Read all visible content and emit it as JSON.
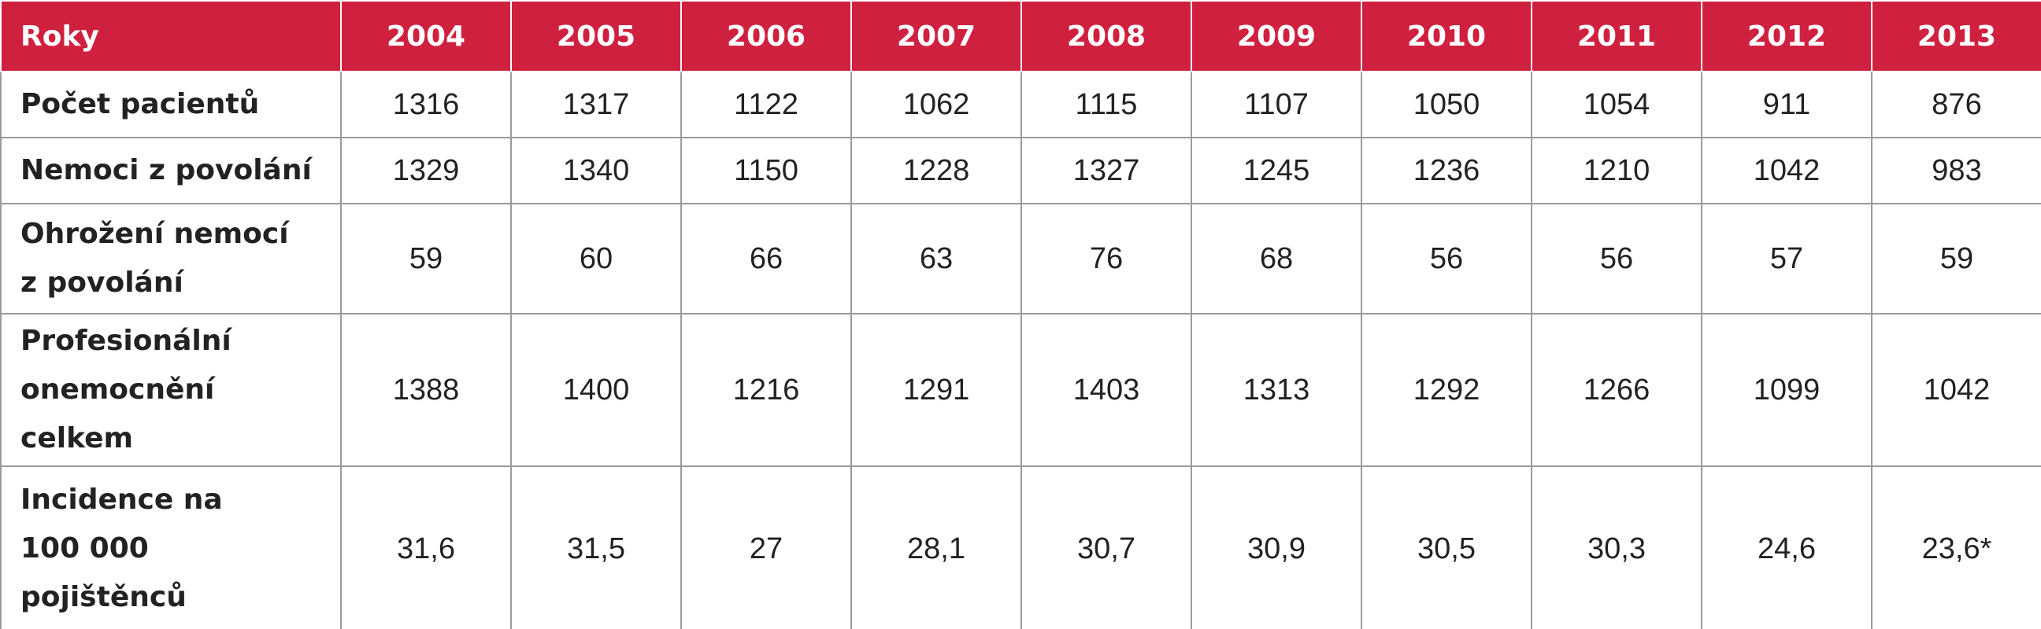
{
  "table": {
    "header": [
      "Roky",
      "2004",
      "2005",
      "2006",
      "2007",
      "2008",
      "2009",
      "2010",
      "2011",
      "2012",
      "2013"
    ],
    "rows": [
      {
        "label": [
          "Počet pacientů"
        ],
        "values": [
          "1316",
          "1317",
          "1122",
          "1062",
          "1115",
          "1107",
          "1050",
          "1054",
          "911",
          "876"
        ]
      },
      {
        "label": [
          "Nemoci z povolání"
        ],
        "values": [
          "1329",
          "1340",
          "1150",
          "1228",
          "1327",
          "1245",
          "1236",
          "1210",
          "1042",
          "983"
        ]
      },
      {
        "label": [
          "Ohrožení nemocí",
          "z povolání"
        ],
        "values": [
          "59",
          "60",
          "66",
          "63",
          "76",
          "68",
          "56",
          "56",
          "57",
          "59"
        ]
      },
      {
        "label": [
          "Profesionální",
          "onemocnění",
          "celkem"
        ],
        "values": [
          "1388",
          "1400",
          "1216",
          "1291",
          "1403",
          "1313",
          "1292",
          "1266",
          "1099",
          "1042"
        ]
      },
      {
        "label": [
          "Incidence na",
          "100 000",
          "pojištěnců"
        ],
        "values": [
          "31,6",
          "31,5",
          "27",
          "28,1",
          "30,7",
          "30,9",
          "30,5",
          "30,3",
          "24,6",
          "23,6*"
        ]
      }
    ]
  }
}
